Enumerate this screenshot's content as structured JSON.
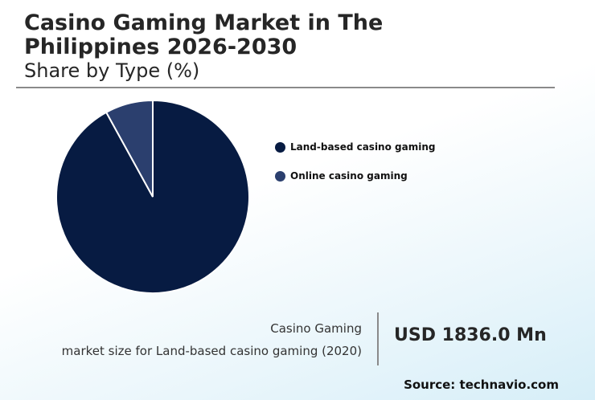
{
  "chart_data": {
    "type": "pie",
    "title": "Casino Gaming Market in The Philippines 2026-2030",
    "subtitle": "Share by Type (%)",
    "slices": [
      {
        "label": "Land-based casino gaming",
        "value": 92,
        "color": "#071b42"
      },
      {
        "label": "Online casino gaming",
        "value": 8,
        "color": "#2b3f6e"
      }
    ],
    "legend_position": "right"
  },
  "stat": {
    "label_line1": "Casino Gaming",
    "label_line2": "market size for Land-based casino gaming (2020)",
    "value": "USD 1836.0 Mn"
  },
  "source": "Source: technavio.com"
}
